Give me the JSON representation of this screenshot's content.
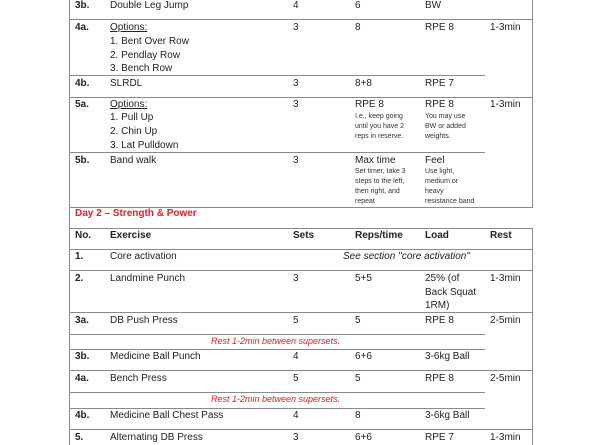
{
  "day1_rows": {
    "r3b": {
      "no": "3b.",
      "exercise": "Double Leg Jump",
      "sets": "4",
      "reps": "6",
      "load": "BW"
    },
    "r4a": {
      "no": "4a.",
      "exercise_label": "Options:",
      "options": [
        "1. Bent Over Row",
        "2. Pendlay Row",
        "3. Bench Row"
      ],
      "sets": "3",
      "reps": "8",
      "load": "RPE 8",
      "rest": "1-3min"
    },
    "r4b": {
      "no": "4b.",
      "exercise": "SLRDL",
      "sets": "3",
      "reps": "8+8",
      "load": "RPE 7"
    },
    "r5a": {
      "no": "5a.",
      "exercise_label": "Options:",
      "options": [
        "1. Pull Up",
        "2. Chin Up",
        "3. Lat Pulldown"
      ],
      "sets": "3",
      "reps": "RPE 8",
      "reps_note": [
        "I.e., keep going",
        "until you have 2",
        "reps in reserve."
      ],
      "load": "RPE 8",
      "load_note": [
        "You may use",
        "BW or added",
        "weights."
      ],
      "rest": "1-3min"
    },
    "r5b": {
      "no": "5b.",
      "exercise": "Band walk",
      "sets": "3",
      "reps": "Max time",
      "reps_note": [
        "Set timer, take 3",
        "steps to the left,",
        "then right, and",
        "repeat"
      ],
      "load": "Feel",
      "load_note": [
        "Use light,",
        "medium or",
        "heavy",
        "resistance band"
      ]
    }
  },
  "day2": {
    "heading": "Day 2 – Strength & Power",
    "headers": {
      "no": "No.",
      "exercise": "Exercise",
      "sets": "Sets",
      "reps": "Reps/time",
      "load": "Load",
      "rest": "Rest"
    },
    "r1": {
      "no": "1.",
      "exercise": "Core activation",
      "note": "See section ''core activation''"
    },
    "r2": {
      "no": "2.",
      "exercise": "Landmine Punch",
      "sets": "3",
      "reps": "5+5",
      "load": [
        "25% (of",
        "Back Squat",
        "1RM)"
      ],
      "rest": "1-3min"
    },
    "r3a": {
      "no": "3a.",
      "exercise": "DB Push Press",
      "sets": "5",
      "reps": "5",
      "load": "RPE 8",
      "rest": "2-5min"
    },
    "note1": "Rest 1-2min between supersets.",
    "r3b": {
      "no": "3b.",
      "exercise": "Medicine Ball Punch",
      "sets": "4",
      "reps": "6+6",
      "load": "3-6kg Ball"
    },
    "r4a": {
      "no": "4a.",
      "exercise": "Bench Press",
      "sets": "5",
      "reps": "5",
      "load": "RPE 8",
      "rest": "2-5min"
    },
    "note2": "Rest 1-2min between supersets.",
    "r4b": {
      "no": "4b.",
      "exercise": "Medicine Ball Chest Pass",
      "sets": "4",
      "reps": "8",
      "load": "3-6kg Ball"
    },
    "r5": {
      "no": "5.",
      "exercise": "Alternating DB Press",
      "sets": "3",
      "reps": "6+6",
      "load": "RPE 7",
      "rest": "1-3min"
    }
  },
  "colors": {
    "heading": "#e0202a",
    "note": "#e0202a",
    "border": "#8a8a8a"
  }
}
